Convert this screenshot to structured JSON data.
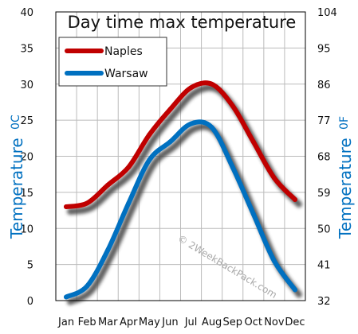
{
  "chart_data": {
    "type": "line",
    "title": "Day time max temperature",
    "categories": [
      "Jan",
      "Feb",
      "Mar",
      "Apr",
      "May",
      "Jun",
      "Jul",
      "Aug",
      "Sep",
      "Oct",
      "Nov",
      "Dec"
    ],
    "series": [
      {
        "name": "Naples",
        "color": "#c00000",
        "values": [
          13,
          13.5,
          16,
          18.5,
          23,
          26.5,
          29.5,
          30,
          27,
          22,
          17,
          14
        ]
      },
      {
        "name": "Warsaw",
        "color": "#0070c0",
        "values": [
          0.5,
          2,
          7,
          13.5,
          19.5,
          22,
          24.5,
          24,
          18.5,
          12,
          5.5,
          1.5
        ]
      }
    ],
    "ylim": [
      0,
      40
    ],
    "y_ticks": [
      "0",
      "5",
      "10",
      "15",
      "20",
      "25",
      "30",
      "35",
      "40"
    ],
    "y2_ticks": [
      "32",
      "41",
      "50",
      "59",
      "68",
      "77",
      "86",
      "95",
      "104"
    ],
    "ylabel": "Temperature",
    "ylabel_unit": "0C",
    "y2label": "Temperature",
    "y2label_unit": "0F",
    "grid": true,
    "legend_position": "top-left"
  },
  "watermark": "© 2WeekBackPack.com",
  "colors": {
    "axis_title": "#0070c0",
    "grid": "#bbbbbb"
  }
}
